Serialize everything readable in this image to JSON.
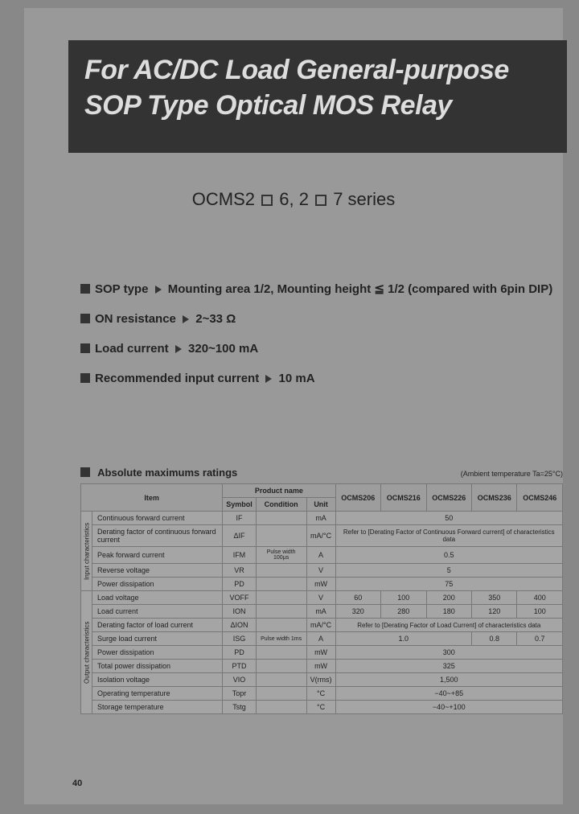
{
  "header": {
    "title_line1": "For AC/DC Load General-purpose",
    "title_line2": "SOP Type Optical MOS Relay"
  },
  "series": {
    "prefix": "OCMS2",
    "mid": "6, 2",
    "suffix": "7 series"
  },
  "features": [
    {
      "label": "SOP type",
      "desc": "Mounting area 1/2, Mounting height ≦ 1/2 (compared with 6pin DIP)"
    },
    {
      "label": "ON resistance",
      "desc": "2~33 Ω"
    },
    {
      "label": "Load current",
      "desc": "320~100 mA"
    },
    {
      "label": "Recommended input current",
      "desc": "10 mA"
    }
  ],
  "table": {
    "title": "Absolute maximums ratings",
    "note": "(Ambient temperature Ta=25°C)",
    "header": {
      "product": "Product name",
      "item": "Item",
      "symbol": "Symbol",
      "condition": "Condition",
      "unit": "Unit",
      "cols": [
        "OCMS206",
        "OCMS216",
        "OCMS226",
        "OCMS236",
        "OCMS246"
      ]
    },
    "groups": [
      {
        "group": "Input characteristics",
        "rows": [
          {
            "item": "Continuous forward current",
            "symbol": "IF",
            "condition": "",
            "unit": "mA",
            "vals": [
              "",
              "",
              "50",
              "",
              ""
            ],
            "span": true
          },
          {
            "item": "Derating factor of continuous forward current",
            "symbol": "ΔIF",
            "condition": "",
            "unit": "mA/°C",
            "vals": [
              "Refer to [Derating Factor of Continuous Forward current] of characteristics data"
            ],
            "span": true,
            "note": true
          },
          {
            "item": "Peak forward current",
            "symbol": "IFM",
            "condition": "Pulse width 100μs",
            "unit": "A",
            "vals": [
              "",
              "",
              "0.5",
              "",
              ""
            ],
            "span": true
          },
          {
            "item": "Reverse voltage",
            "symbol": "VR",
            "condition": "",
            "unit": "V",
            "vals": [
              "",
              "",
              "5",
              "",
              ""
            ],
            "span": true
          },
          {
            "item": "Power dissipation",
            "symbol": "PD",
            "condition": "",
            "unit": "mW",
            "vals": [
              "",
              "",
              "75",
              "",
              ""
            ],
            "span": true
          }
        ]
      },
      {
        "group": "Output characteristics",
        "rows": [
          {
            "item": "Load voltage",
            "symbol": "VOFF",
            "condition": "",
            "unit": "V",
            "vals": [
              "60",
              "100",
              "200",
              "350",
              "400"
            ]
          },
          {
            "item": "Load current",
            "symbol": "ION",
            "condition": "",
            "unit": "mA",
            "vals": [
              "320",
              "280",
              "180",
              "120",
              "100"
            ]
          },
          {
            "item": "Derating factor of load current",
            "symbol": "ΔION",
            "condition": "",
            "unit": "mA/°C",
            "vals": [
              "Refer to [Derating Factor of Load Current] of characteristics data"
            ],
            "span": true,
            "note": true
          },
          {
            "item": "Surge load current",
            "symbol": "ISG",
            "condition": "Pulse width 1ms",
            "unit": "A",
            "vals": [
              "1.0",
              "1.0",
              "1.0",
              "0.8",
              "0.7"
            ],
            "merge3": true
          },
          {
            "item": "Power dissipation",
            "symbol": "PD",
            "condition": "",
            "unit": "mW",
            "vals": [
              "",
              "",
              "300",
              "",
              ""
            ],
            "span": true
          },
          {
            "item": "Total power dissipation",
            "symbol": "PTD",
            "condition": "",
            "unit": "mW",
            "vals": [
              "",
              "",
              "325",
              "",
              ""
            ],
            "span": true
          },
          {
            "item": "Isolation voltage",
            "symbol": "VIO",
            "condition": "",
            "unit": "V(rms)",
            "vals": [
              "",
              "",
              "1,500",
              "",
              ""
            ],
            "span": true
          },
          {
            "item": "Operating temperature",
            "symbol": "Topr",
            "condition": "",
            "unit": "°C",
            "vals": [
              "",
              "",
              "−40~+85",
              "",
              ""
            ],
            "span": true
          },
          {
            "item": "Storage temperature",
            "symbol": "Tstg",
            "condition": "",
            "unit": "°C",
            "vals": [
              "",
              "",
              "−40~+100",
              "",
              ""
            ],
            "span": true
          }
        ]
      }
    ]
  },
  "pageNum": "40"
}
